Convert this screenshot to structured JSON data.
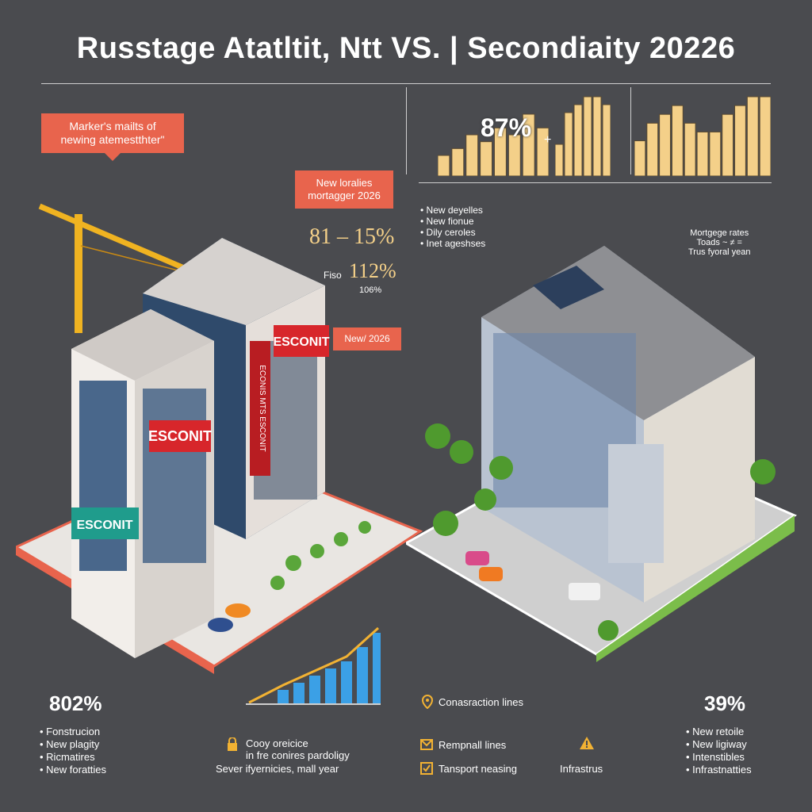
{
  "title": "Russtage Atatltit, Ntt VS. | Secondiaity 20226",
  "left": {
    "callout_primary": {
      "line1": "Marker's mailts of",
      "line2": "newing atemestthter\""
    },
    "callout_mortgage": {
      "line1": "New loralies",
      "line2": "mortagger 2026"
    },
    "stat_range": "81 – 15%",
    "stat_free_label": "Fiso",
    "stat_free_value": "112%",
    "stat_free_sub": "106%",
    "banner_new": "New/ 2026",
    "building_sign_1": "ESCONIT",
    "building_sign_2": "ESCONIT",
    "building_sign_3": "ESCONIT",
    "building_sign_vertical": "ECONIS MTS ESCONIT",
    "bottom_stat": "802%",
    "bottom_bullets": [
      "Fonstrucion",
      "New plagity",
      "Ricmatires",
      "New foratties"
    ]
  },
  "center_bottom": {
    "line1": "Cooy oreicice",
    "line2": "in fre conires pardoligy",
    "line3": "Sever ifyernicies, mall year"
  },
  "right": {
    "chart_stat": "87%",
    "chart_plus": "+",
    "bullets_top": [
      "New deyelles",
      "New fionue",
      "Dily ceroles",
      "Inet ageshses"
    ],
    "mortgage_note": {
      "line1": "Mortgege rates",
      "line2": "Toads ~ ≠ =",
      "line3": "Trus fyoral yean"
    },
    "legend": [
      {
        "icon": "map-pin-icon",
        "label": "Conasraction lines"
      },
      {
        "icon": "envelope-icon",
        "label": "Rempnall lines"
      },
      {
        "icon": "check-box-icon",
        "label": "Tansport neasing"
      }
    ],
    "warning_label": "Infrastrus",
    "bottom_stat": "39%",
    "bottom_bullets": [
      "New retoile",
      "New ligiway",
      "Intenstibles",
      "Infrastnatties"
    ]
  },
  "colors": {
    "background": "#4a4b4f",
    "accent_red": "#e8644d",
    "bar_cream": "#f4d089",
    "bar_blue": "#3ba0e6",
    "trend_gold": "#f2b233"
  },
  "chart_data": [
    {
      "type": "bar",
      "values": [
        3,
        4,
        6,
        5,
        7,
        6,
        9,
        7
      ],
      "xlabel": "",
      "ylabel": ""
    },
    {
      "type": "bar",
      "values": [
        4,
        8,
        9,
        10,
        10,
        9
      ],
      "xlabel": "",
      "ylabel": ""
    },
    {
      "type": "bar",
      "values": [
        4,
        6,
        7,
        8,
        6,
        5,
        5,
        7,
        8,
        9,
        9
      ],
      "xlabel": "",
      "ylabel": ""
    },
    {
      "type": "bar",
      "values": [
        2,
        3,
        4,
        5,
        6,
        8,
        10
      ],
      "xlabel": "",
      "ylabel": ""
    }
  ]
}
